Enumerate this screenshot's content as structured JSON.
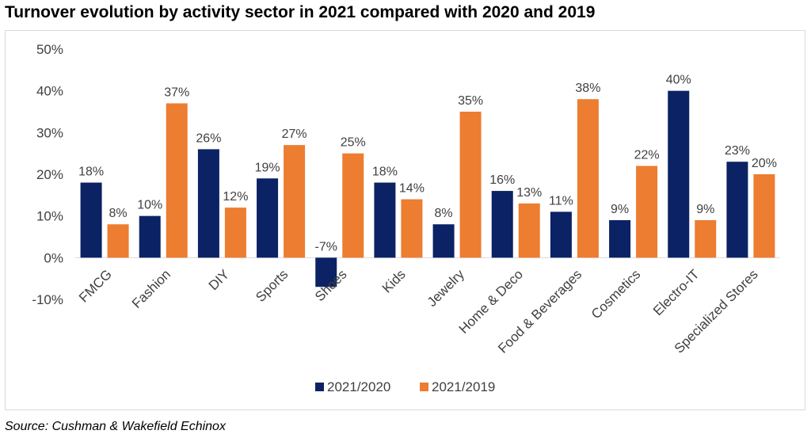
{
  "header": {
    "title": "Turnover evolution by activity sector in 2021 compared with 2020 and 2019"
  },
  "footer": {
    "source": "Source: Cushman & Wakefield Echinox"
  },
  "colors": {
    "series1": "#0b2265",
    "series2": "#ed7d31",
    "text": "#404040",
    "axis": "#d9d9d9"
  },
  "chart_data": {
    "type": "bar",
    "title": "",
    "xlabel": "",
    "ylabel": "",
    "ylim": [
      -10,
      50
    ],
    "yticks": [
      "-10%",
      "0%",
      "10%",
      "20%",
      "30%",
      "40%",
      "50%"
    ],
    "grid": false,
    "legend_position": "bottom",
    "categories": [
      "FMCG",
      "Fashion",
      "DIY",
      "Sports",
      "Shoes",
      "Kids",
      "Jewelry",
      "Home & Deco",
      "Food & Beverages",
      "Cosmetics",
      "Electro-IT",
      "Specialized Stores"
    ],
    "series": [
      {
        "name": "2021/2020",
        "values": [
          18,
          10,
          26,
          19,
          -7,
          18,
          8,
          16,
          11,
          9,
          40,
          23
        ],
        "labels": [
          "18%",
          "10%",
          "26%",
          "19%",
          "-7%",
          "18%",
          "8%",
          "16%",
          "11%",
          "9%",
          "40%",
          "23%"
        ]
      },
      {
        "name": "2021/2019",
        "values": [
          8,
          37,
          12,
          27,
          25,
          14,
          35,
          13,
          38,
          22,
          9,
          20
        ],
        "labels": [
          "8%",
          "37%",
          "12%",
          "27%",
          "25%",
          "14%",
          "35%",
          "13%",
          "38%",
          "22%",
          "9%",
          "20%"
        ]
      }
    ]
  }
}
